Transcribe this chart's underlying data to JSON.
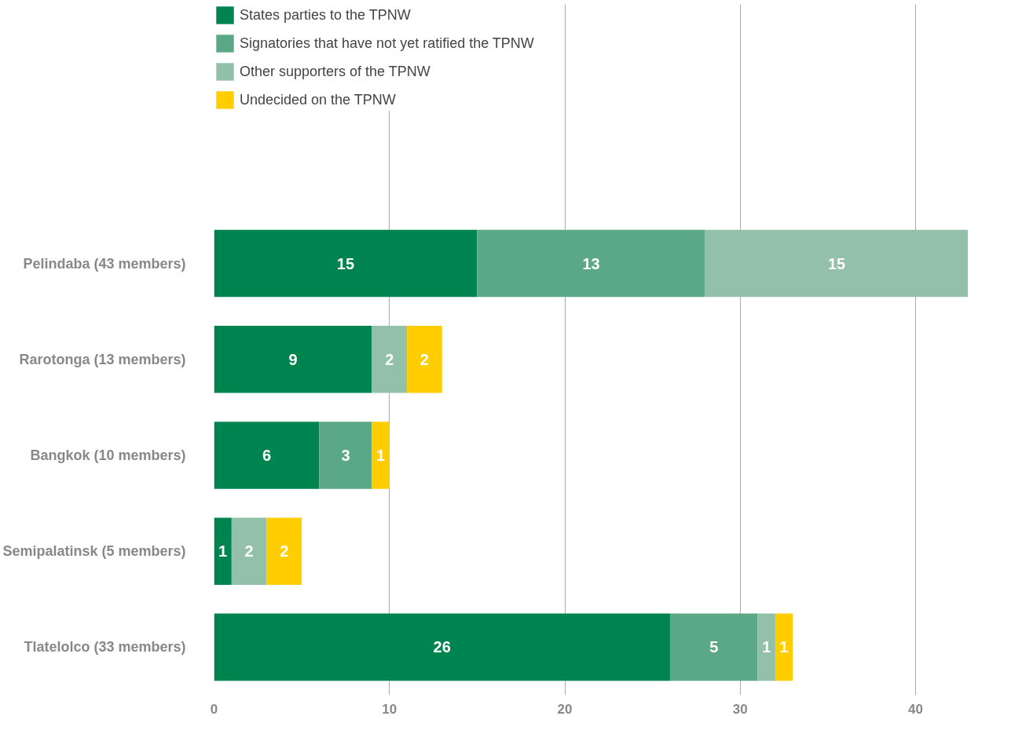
{
  "chart_data": {
    "type": "bar",
    "orientation": "horizontal",
    "stacked": true,
    "data_labels": true,
    "categories": [
      "Pelindaba (43 members)",
      "Rarotonga (13 members)",
      "Bangkok (10 members)",
      "Semipalatinsk (5 members)",
      "Tlatelolco (33 members)"
    ],
    "series": [
      {
        "name": "States parties to the TPNW",
        "color": "#00844f",
        "values": [
          15,
          9,
          6,
          1,
          26
        ]
      },
      {
        "name": "Signatories that have not yet ratified the TPNW",
        "color": "#5aa886",
        "values": [
          13,
          null,
          3,
          null,
          5
        ]
      },
      {
        "name": "Other supporters of the TPNW",
        "color": "#92c0a9",
        "values": [
          15,
          2,
          null,
          2,
          1
        ]
      },
      {
        "name": "Undecided on the TPNW",
        "color": "#ffcd00",
        "values": [
          null,
          2,
          1,
          2,
          1
        ]
      }
    ],
    "xlim": [
      0,
      43
    ],
    "xticks": [
      0,
      10,
      20,
      30,
      40
    ],
    "grid": "x",
    "legend": "top left"
  }
}
